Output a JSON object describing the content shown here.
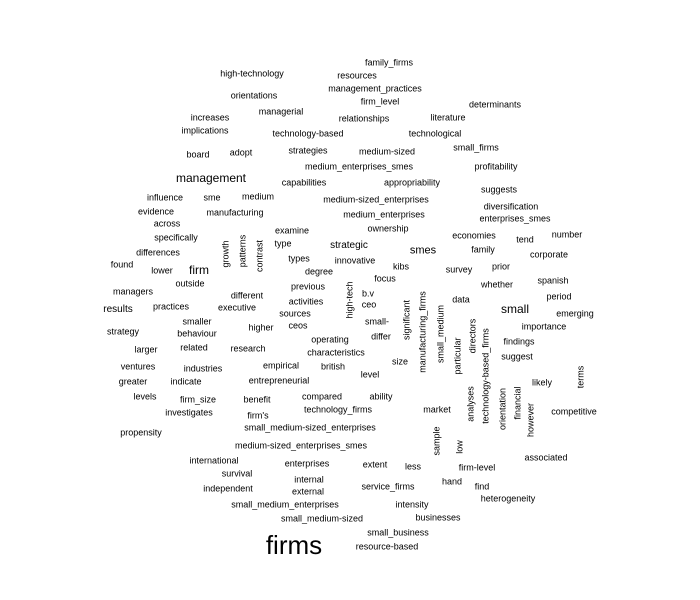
{
  "word_cloud": {
    "words": [
      "family_firms",
      "high-technology",
      "resources",
      "management_practices",
      "orientations",
      "firm_level",
      "determinants",
      "managerial",
      "relationships",
      "literature",
      "increases",
      "implications",
      "technology-based",
      "technological",
      "small_firms",
      "board",
      "adopt",
      "strategies",
      "medium-sized",
      "medium_enterprises_smes",
      "profitability",
      "management",
      "capabilities",
      "appropriability",
      "suggests",
      "influence",
      "sme",
      "medium",
      "medium-sized_enterprises",
      "diversification",
      "evidence",
      "manufacturing",
      "medium_enterprises",
      "enterprises_smes",
      "across",
      "examine",
      "ownership",
      "economies",
      "number",
      "specifically",
      "growth",
      "patterns",
      "contrast",
      "type",
      "strategic",
      "smes",
      "tend",
      "differences",
      "family",
      "corporate",
      "types",
      "innovative",
      "found",
      "lower",
      "firm",
      "degree",
      "kibs",
      "survey",
      "prior",
      "focus",
      "outside",
      "spanish",
      "previous",
      "whether",
      "managers",
      "different",
      "b.v",
      "data",
      "period",
      "high-tech",
      "ceo",
      "significant",
      "manufacturing_firms",
      "results",
      "practices",
      "executive",
      "activities",
      "small",
      "emerging",
      "sources",
      "smaller",
      "small-",
      "small_medium",
      "directors",
      "importance",
      "strategy",
      "behaviour",
      "higher",
      "ceos",
      "differ",
      "technology-based_firms",
      "findings",
      "larger",
      "related",
      "research",
      "operating",
      "particular",
      "characteristics",
      "suggest",
      "size",
      "ventures",
      "industries",
      "empirical",
      "british",
      "level",
      "terms",
      "greater",
      "indicate",
      "entrepreneurial",
      "likely",
      "financial",
      "levels",
      "firm_size",
      "benefit",
      "compared",
      "ability",
      "orientation",
      "analyses",
      "investigates",
      "firm's",
      "technology_firms",
      "market",
      "however",
      "competitive",
      "small_medium-sized_enterprises",
      "propensity",
      "sample",
      "medium-sized_enterprises_smes",
      "low",
      "international",
      "enterprises",
      "extent",
      "less",
      "firm-level",
      "associated",
      "survival",
      "internal",
      "hand",
      "independent",
      "external",
      "service_firms",
      "find",
      "heterogeneity",
      "small_medium_enterprises",
      "intensity",
      "small_medium-sized",
      "businesses",
      "small_business",
      "firms",
      "resource-based"
    ]
  }
}
